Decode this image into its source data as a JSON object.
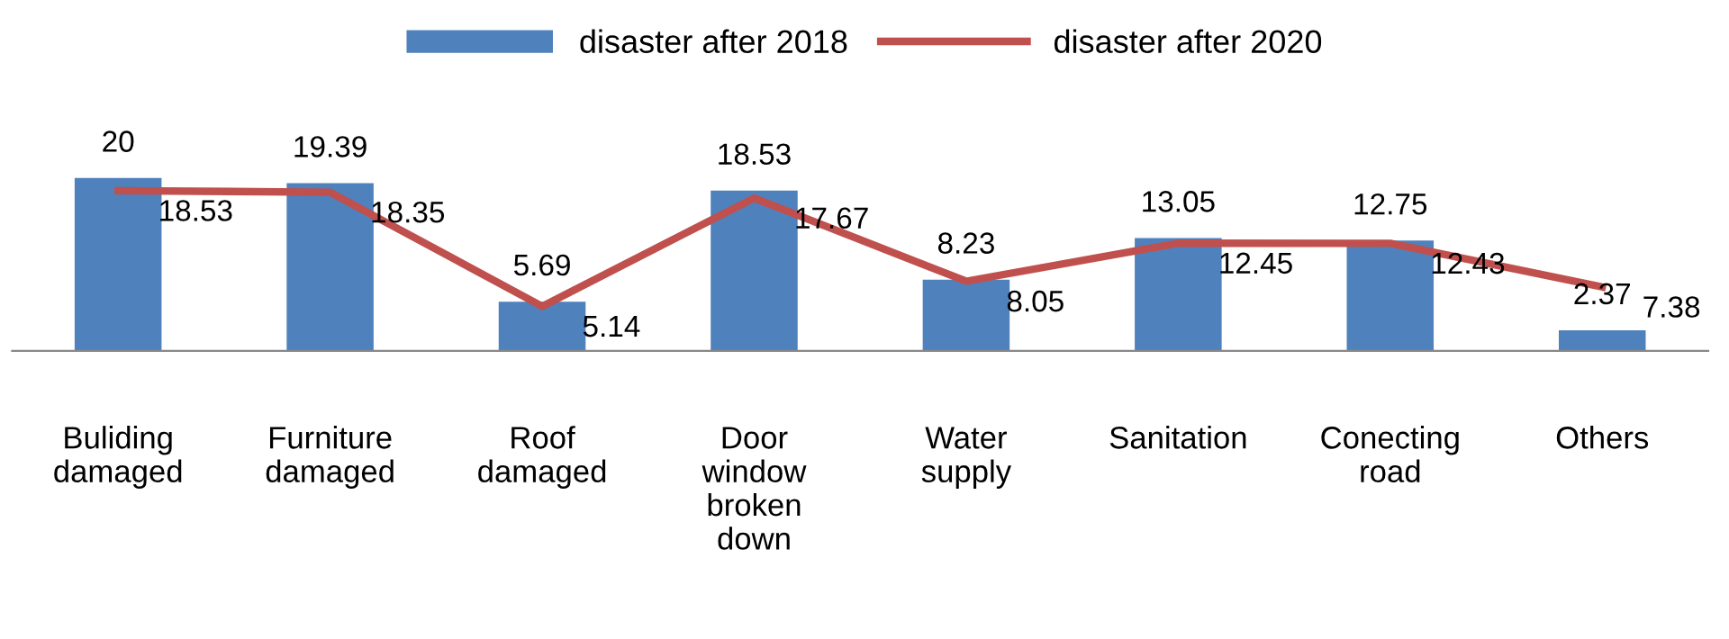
{
  "chart_data": {
    "type": "bar",
    "categories": [
      "Buliding\ndamaged",
      "Furniture\ndamaged",
      "Roof\ndamaged",
      "Door\nwindow\nbroken\ndown",
      "Water\nsupply",
      "Sanitation",
      "Conecting\nroad",
      "Others"
    ],
    "series": [
      {
        "name": "disaster after 2018",
        "color": "#4f81bd",
        "values": [
          20,
          19.39,
          5.69,
          18.53,
          8.23,
          13.05,
          12.75,
          2.37
        ]
      },
      {
        "name": "disaster after 2020",
        "type": "line",
        "color": "#c0504d",
        "values": [
          18.53,
          18.35,
          5.14,
          17.67,
          8.05,
          12.45,
          12.43,
          7.38
        ]
      }
    ],
    "data_labels": true,
    "legend": "top",
    "marker": "none"
  }
}
